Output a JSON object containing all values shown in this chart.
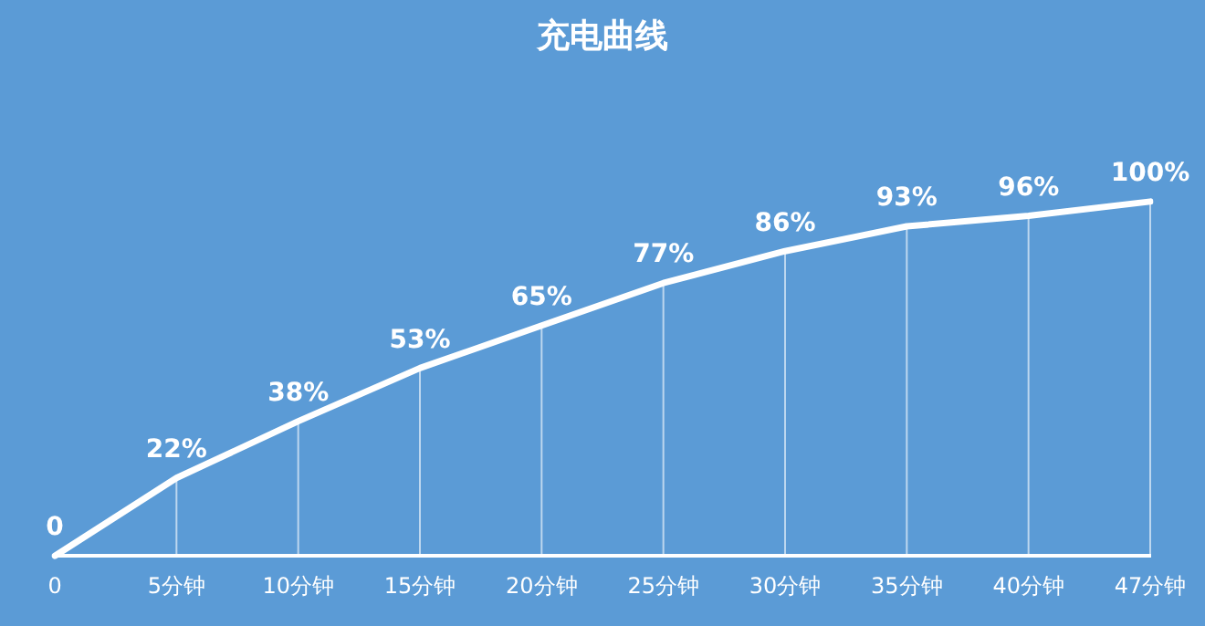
{
  "chart_data": {
    "type": "line",
    "title": "充电曲线",
    "categories": [
      "0",
      "5分钟",
      "10分钟",
      "15分钟",
      "20分钟",
      "25分钟",
      "30分钟",
      "35分钟",
      "40分钟",
      "47分钟"
    ],
    "series": [
      {
        "color": "#ffffff",
        "values": [
          0,
          22,
          38,
          53,
          65,
          77,
          86,
          93,
          96,
          100
        ],
        "value_labels": [
          "0",
          "22%",
          "38%",
          "53%",
          "65%",
          "77%",
          "86%",
          "93%",
          "96%",
          "100%"
        ]
      }
    ],
    "tick_labels": "x",
    "grid": "x",
    "legend": false,
    "marker": "none",
    "line_style": "solid"
  }
}
